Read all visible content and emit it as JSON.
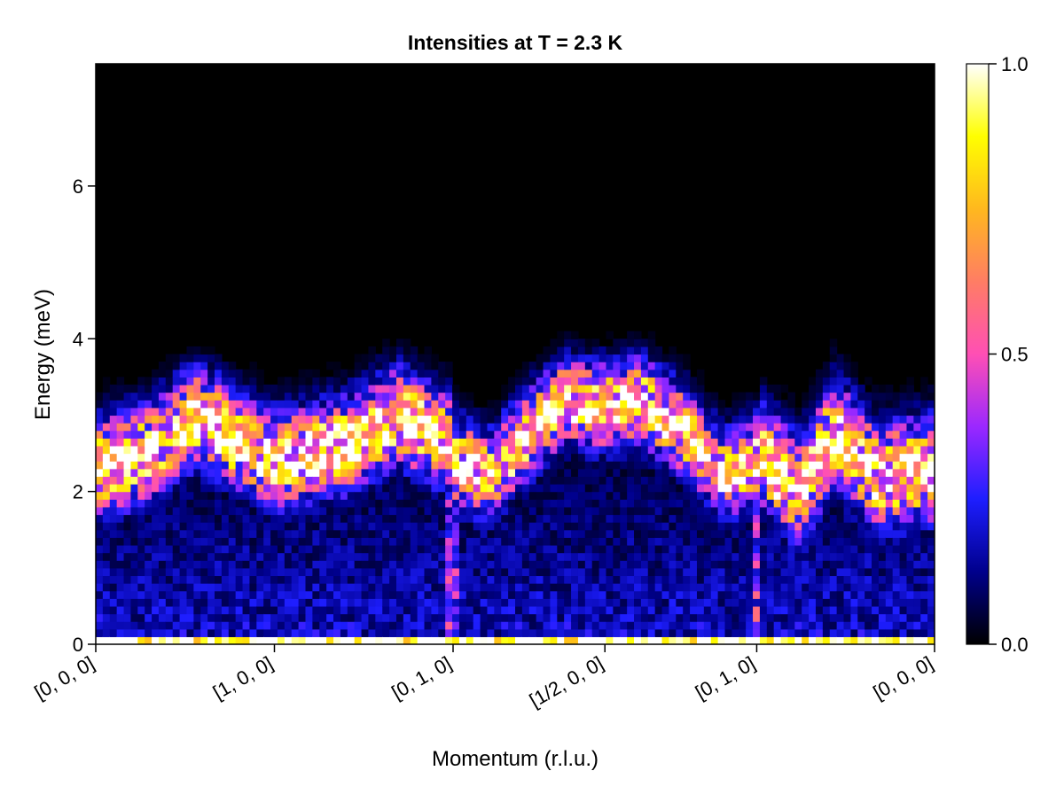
{
  "chart_data": {
    "type": "heatmap",
    "title": "Intensities at T = 2.3 K",
    "xlabel": "Momentum (r.l.u.)",
    "ylabel": "Energy (meV)",
    "ylim": [
      0,
      7.6
    ],
    "grid": false,
    "colormap": "gnuplot2",
    "colormap_stops": [
      "#000000",
      "#00008c",
      "#1e1eff",
      "#9b28ff",
      "#ff4fb4",
      "#ff7d64",
      "#ffb81e",
      "#ffff00",
      "#ffffff"
    ],
    "x_ticks": [
      {
        "pos": 0.0,
        "label": "[0, 0, 0]"
      },
      {
        "pos": 0.213,
        "label": "[1, 0, 0]"
      },
      {
        "pos": 0.426,
        "label": "[0, 1, 0]"
      },
      {
        "pos": 0.607,
        "label": "[1/2, 0, 0]"
      },
      {
        "pos": 0.788,
        "label": "[0, 1, 0]"
      },
      {
        "pos": 1.0,
        "label": "[0, 0, 0]"
      }
    ],
    "y_ticks": [
      0,
      2,
      4,
      6
    ],
    "colorbar": {
      "range": [
        0.0,
        1.0
      ],
      "ticks": [
        {
          "value": 0.0,
          "label": "0.0"
        },
        {
          "value": 0.5,
          "label": "0.5"
        },
        {
          "value": 1.0,
          "label": "1.0"
        }
      ]
    },
    "grid_shape": {
      "momentum_bins": 120,
      "energy_bins": 75,
      "energy_step": 0.1
    },
    "elastic_line": {
      "energy_range": [
        0.05,
        0.15
      ],
      "value": 1.0
    },
    "high_symmetry_lines": [
      0.426,
      0.788
    ],
    "bands": [
      {
        "x": [
          0.0,
          0.06,
          0.12,
          0.18,
          0.213,
          0.3,
          0.36,
          0.426
        ],
        "center": [
          2.3,
          2.5,
          3.0,
          2.6,
          2.4,
          2.6,
          3.0,
          2.6
        ],
        "width": 0.55,
        "amplitude": 1.0
      },
      {
        "x": [
          0.426,
          0.47,
          0.52,
          0.56,
          0.607
        ],
        "center": [
          2.4,
          2.2,
          2.8,
          3.2,
          3.1
        ],
        "width": 0.5,
        "amplitude": 0.95
      },
      {
        "x": [
          0.607,
          0.65,
          0.7,
          0.75,
          0.788
        ],
        "center": [
          3.1,
          3.2,
          2.8,
          2.2,
          2.4
        ],
        "width": 0.5,
        "amplitude": 0.95
      },
      {
        "x": [
          0.788,
          0.84,
          0.88,
          0.93,
          1.0
        ],
        "center": [
          2.5,
          2.0,
          2.8,
          2.2,
          2.3
        ],
        "width": 0.6,
        "amplitude": 1.0
      }
    ]
  }
}
